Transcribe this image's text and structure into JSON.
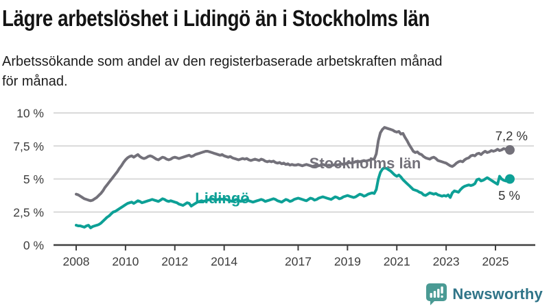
{
  "header": {
    "title": "Lägre arbetslöshet i Lidingö än i Stockholms län",
    "subtitle_lines": [
      "Arbetssökande som andel av den registerbaserade arbetskraften månad",
      "för månad."
    ]
  },
  "chart_data": {
    "type": "line",
    "title": "Lägre arbetslöshet i Lidingö än i Stockholms län",
    "xlabel": "",
    "ylabel": "",
    "unit": "%",
    "ylim": [
      0,
      10
    ],
    "grid": "horizontal",
    "legend_position": "inline-labels",
    "y_ticks": [
      {
        "label": "10 %",
        "value": 10
      },
      {
        "label": "7,5 %",
        "value": 7.5
      },
      {
        "label": "5 %",
        "value": 5
      },
      {
        "label": "2,5 %",
        "value": 2.5
      },
      {
        "label": "0 %",
        "value": 0
      }
    ],
    "x_ticks": [
      {
        "label": "2008",
        "year": 2008
      },
      {
        "label": "2010",
        "year": 2010
      },
      {
        "label": "2012",
        "year": 2012
      },
      {
        "label": "2014",
        "year": 2014
      },
      {
        "label": "2017",
        "year": 2017
      },
      {
        "label": "2019",
        "year": 2019
      },
      {
        "label": "2021",
        "year": 2021
      },
      {
        "label": "2023",
        "year": 2023
      },
      {
        "label": "2025",
        "year": 2025
      }
    ],
    "x_start": "2008-01",
    "frequency": "monthly",
    "series": [
      {
        "name": "Stockholms län",
        "color": "#73717a",
        "end_label": "7,2 %",
        "end_value": 7.2,
        "values": [
          3.85,
          3.8,
          3.7,
          3.6,
          3.5,
          3.45,
          3.4,
          3.35,
          3.4,
          3.5,
          3.6,
          3.75,
          3.9,
          4.1,
          4.35,
          4.55,
          4.75,
          4.95,
          5.15,
          5.35,
          5.55,
          5.8,
          6.0,
          6.25,
          6.45,
          6.6,
          6.7,
          6.75,
          6.65,
          6.75,
          6.85,
          6.7,
          6.6,
          6.55,
          6.6,
          6.7,
          6.75,
          6.7,
          6.6,
          6.5,
          6.45,
          6.55,
          6.65,
          6.6,
          6.5,
          6.45,
          6.5,
          6.6,
          6.65,
          6.6,
          6.55,
          6.6,
          6.65,
          6.7,
          6.75,
          6.8,
          6.7,
          6.75,
          6.85,
          6.9,
          6.95,
          7.0,
          7.05,
          7.1,
          7.1,
          7.05,
          7.0,
          6.95,
          6.9,
          6.85,
          6.8,
          6.85,
          6.75,
          6.7,
          6.65,
          6.7,
          6.6,
          6.55,
          6.5,
          6.45,
          6.5,
          6.55,
          6.5,
          6.55,
          6.45,
          6.4,
          6.45,
          6.5,
          6.45,
          6.4,
          6.5,
          6.45,
          6.35,
          6.3,
          6.35,
          6.3,
          6.35,
          6.25,
          6.2,
          6.25,
          6.15,
          6.2,
          6.1,
          6.15,
          6.05,
          6.1,
          6.05,
          6.05,
          6.1,
          6.05,
          6.0,
          6.05,
          6.1,
          6.05,
          6.0,
          5.95,
          6.0,
          6.05,
          6.0,
          6.05,
          6.1,
          6.05,
          6.0,
          6.05,
          6.0,
          6.05,
          6.1,
          6.05,
          6.1,
          6.15,
          6.1,
          6.15,
          6.2,
          6.25,
          6.2,
          6.25,
          6.3,
          6.35,
          6.3,
          6.35,
          6.4,
          6.35,
          6.4,
          6.45,
          6.5,
          6.5,
          6.9,
          7.9,
          8.5,
          8.75,
          8.9,
          8.85,
          8.8,
          8.75,
          8.7,
          8.6,
          8.55,
          8.6,
          8.4,
          8.45,
          8.15,
          7.9,
          7.6,
          7.35,
          7.1,
          7.0,
          7.05,
          6.9,
          6.85,
          6.7,
          6.6,
          6.55,
          6.5,
          6.6,
          6.65,
          6.55,
          6.4,
          6.35,
          6.3,
          6.25,
          6.2,
          6.1,
          6.0,
          5.95,
          6.05,
          6.2,
          6.3,
          6.35,
          6.3,
          6.45,
          6.55,
          6.6,
          6.75,
          6.8,
          6.75,
          6.9,
          6.95,
          6.85,
          7.0,
          7.1,
          7.0,
          7.05,
          7.15,
          7.1,
          7.15,
          7.25,
          7.15,
          7.2,
          7.3,
          7.25,
          7.15,
          7.2
        ]
      },
      {
        "name": "Lidingö",
        "color": "#0da096",
        "end_label": "5 %",
        "end_value": 5.0,
        "values": [
          1.5,
          1.45,
          1.45,
          1.4,
          1.35,
          1.45,
          1.5,
          1.3,
          1.4,
          1.45,
          1.5,
          1.55,
          1.65,
          1.8,
          1.95,
          2.1,
          2.2,
          2.35,
          2.5,
          2.55,
          2.65,
          2.75,
          2.85,
          2.95,
          3.05,
          3.15,
          3.2,
          3.25,
          3.15,
          3.25,
          3.35,
          3.3,
          3.2,
          3.25,
          3.3,
          3.35,
          3.4,
          3.45,
          3.4,
          3.35,
          3.3,
          3.4,
          3.5,
          3.45,
          3.35,
          3.3,
          3.35,
          3.3,
          3.25,
          3.2,
          3.1,
          3.05,
          3.0,
          3.1,
          3.2,
          3.15,
          2.95,
          3.05,
          3.15,
          3.25,
          3.3,
          3.35,
          3.3,
          3.35,
          3.4,
          3.45,
          3.5,
          3.45,
          3.4,
          3.45,
          3.5,
          3.45,
          3.5,
          3.45,
          3.4,
          3.35,
          3.3,
          3.4,
          3.45,
          3.4,
          3.3,
          3.35,
          3.4,
          3.45,
          3.35,
          3.3,
          3.25,
          3.3,
          3.35,
          3.4,
          3.45,
          3.4,
          3.3,
          3.35,
          3.4,
          3.45,
          3.5,
          3.45,
          3.35,
          3.3,
          3.25,
          3.35,
          3.45,
          3.4,
          3.3,
          3.35,
          3.45,
          3.5,
          3.55,
          3.5,
          3.45,
          3.4,
          3.35,
          3.45,
          3.55,
          3.5,
          3.4,
          3.45,
          3.55,
          3.6,
          3.65,
          3.6,
          3.55,
          3.5,
          3.45,
          3.55,
          3.65,
          3.6,
          3.5,
          3.55,
          3.65,
          3.7,
          3.75,
          3.7,
          3.65,
          3.6,
          3.65,
          3.75,
          3.85,
          3.8,
          3.7,
          3.75,
          3.85,
          3.9,
          3.95,
          3.9,
          4.2,
          5.0,
          5.5,
          5.75,
          5.85,
          5.8,
          5.7,
          5.6,
          5.45,
          5.3,
          5.2,
          5.3,
          5.15,
          4.95,
          4.8,
          4.65,
          4.5,
          4.35,
          4.2,
          4.15,
          4.1,
          4.0,
          3.95,
          3.8,
          3.75,
          3.85,
          3.95,
          3.9,
          3.85,
          3.9,
          3.8,
          3.75,
          3.7,
          3.75,
          3.7,
          3.8,
          3.6,
          3.95,
          4.1,
          4.05,
          4.0,
          4.2,
          4.35,
          4.45,
          4.5,
          4.55,
          4.5,
          4.55,
          4.65,
          4.95,
          5.0,
          4.85,
          4.9,
          5.0,
          5.1,
          5.0,
          4.9,
          4.8,
          4.7,
          4.6,
          5.2,
          5.0,
          4.9,
          4.85,
          4.95,
          5.0
        ]
      }
    ]
  },
  "footer": {
    "brand": "Newsworthy"
  }
}
